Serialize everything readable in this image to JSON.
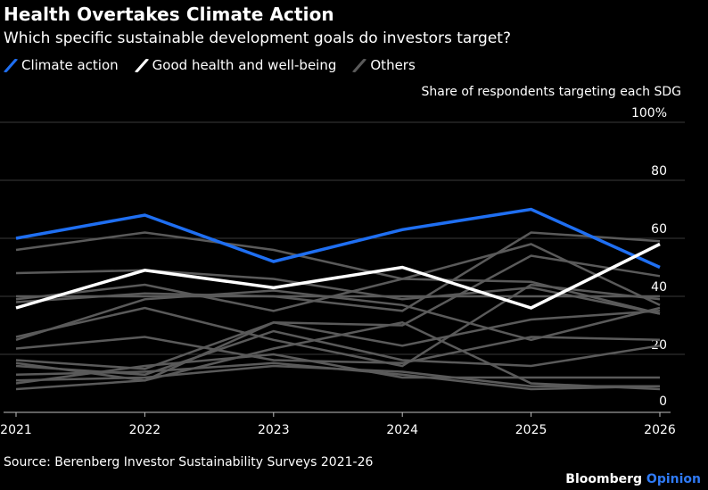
{
  "title": "Health Overtakes Climate Action",
  "subtitle": "Which specific sustainable development goals do investors target?",
  "legend": [
    {
      "label": "Climate action",
      "color": "#1f6ff2"
    },
    {
      "label": "Good health and well-being",
      "color": "#ffffff"
    },
    {
      "label": "Others",
      "color": "#5a5a5a"
    }
  ],
  "ylabel": "Share of respondents targeting each SDG",
  "source": "Source: Berenberg Investor Sustainability Surveys 2021-26",
  "brand": {
    "name": "Bloomberg",
    "suffix": "Opinion"
  },
  "chart_data": {
    "type": "line",
    "title": "Health Overtakes Climate Action",
    "subtitle": "Which specific sustainable development goals do investors target?",
    "xlabel": "",
    "ylabel": "Share of respondents targeting each SDG",
    "x": [
      "2021",
      "2022",
      "2023",
      "2024",
      "2025",
      "2026"
    ],
    "ylim": [
      0,
      100
    ],
    "yticks": [
      0,
      20,
      40,
      60,
      80,
      100
    ],
    "ytick_labels": [
      "0",
      "20",
      "40",
      "60",
      "80",
      "100%"
    ],
    "grid": true,
    "series": [
      {
        "name": "Others",
        "color": "#5a5a5a",
        "values": [
          56,
          62,
          56,
          46,
          45,
          34
        ]
      },
      {
        "name": "Others",
        "color": "#5a5a5a",
        "values": [
          48,
          49,
          46,
          39,
          43,
          34
        ]
      },
      {
        "name": "Others",
        "color": "#5a5a5a",
        "values": [
          40,
          40,
          40,
          40,
          40,
          40
        ]
      },
      {
        "name": "Others",
        "color": "#5a5a5a",
        "values": [
          39,
          44,
          35,
          46,
          58,
          37
        ]
      },
      {
        "name": "Others",
        "color": "#5a5a5a",
        "values": [
          38,
          41,
          40,
          35,
          62,
          59
        ]
      },
      {
        "name": "Others",
        "color": "#5a5a5a",
        "values": [
          25,
          39,
          42,
          37,
          25,
          36
        ]
      },
      {
        "name": "Others",
        "color": "#5a5a5a",
        "values": [
          26,
          36,
          25,
          16,
          44,
          39
        ]
      },
      {
        "name": "Others",
        "color": "#5a5a5a",
        "values": [
          22,
          26,
          18,
          17,
          26,
          25
        ]
      },
      {
        "name": "Others",
        "color": "#5a5a5a",
        "values": [
          18,
          15,
          31,
          30,
          54,
          47
        ]
      },
      {
        "name": "Others",
        "color": "#5a5a5a",
        "values": [
          17,
          11,
          31,
          23,
          32,
          35
        ]
      },
      {
        "name": "Others",
        "color": "#5a5a5a",
        "values": [
          16,
          13,
          28,
          18,
          16,
          23
        ]
      },
      {
        "name": "Others",
        "color": "#5a5a5a",
        "values": [
          13,
          14,
          17,
          13,
          8,
          9
        ]
      },
      {
        "name": "Others",
        "color": "#5a5a5a",
        "values": [
          10,
          16,
          20,
          12,
          12,
          12
        ]
      },
      {
        "name": "Others",
        "color": "#5a5a5a",
        "values": [
          8,
          11,
          22,
          31,
          10,
          8
        ]
      },
      {
        "name": "Others",
        "color": "#5a5a5a",
        "values": [
          11,
          12,
          16,
          14,
          9,
          9
        ]
      },
      {
        "name": "Climate action",
        "color": "#1f6ff2",
        "values": [
          60,
          68,
          52,
          63,
          70,
          50
        ]
      },
      {
        "name": "Good health and well-being",
        "color": "#ffffff",
        "values": [
          36,
          49,
          43,
          50,
          36,
          58
        ]
      }
    ]
  }
}
